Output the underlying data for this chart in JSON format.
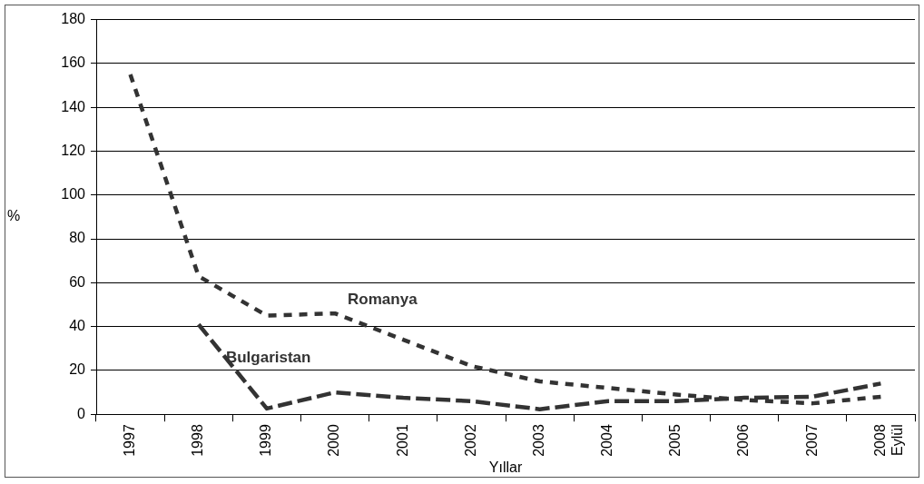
{
  "chart_data": {
    "type": "line",
    "xlabel": "Yıllar",
    "ylabel": "%",
    "categories": [
      "1997",
      "1998",
      "1999",
      "2000",
      "2001",
      "2002",
      "2003",
      "2004",
      "2005",
      "2006",
      "2007",
      "2008 Eylül"
    ],
    "series": [
      {
        "name": "Romanya",
        "color": "#333333",
        "line_style": "dotted",
        "values": [
          155,
          63,
          45,
          46,
          34,
          22,
          15,
          12,
          9,
          6.5,
          5,
          8
        ]
      },
      {
        "name": "Bulgaristan",
        "color": "#333333",
        "line_style": "dashed",
        "values": [
          null,
          41,
          2.6,
          10,
          7.5,
          6,
          2.3,
          6,
          6,
          7.5,
          8,
          14
        ]
      }
    ],
    "ylim": [
      0,
      180
    ],
    "yticks": [
      0,
      20,
      40,
      60,
      80,
      100,
      120,
      140,
      160,
      180
    ],
    "grid": "y",
    "legend": false,
    "marker": "none"
  }
}
